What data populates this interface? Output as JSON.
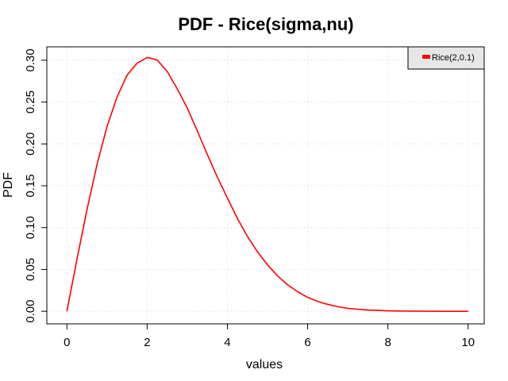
{
  "chart_data": {
    "type": "line",
    "title": "PDF - Rice(sigma,nu)",
    "xlabel": "values",
    "ylabel": "PDF",
    "xlim": [
      -0.5,
      10.4
    ],
    "ylim": [
      -0.015,
      0.316
    ],
    "x_ticks": [
      0,
      2,
      4,
      6,
      8,
      10
    ],
    "x_tick_labels": [
      "0",
      "2",
      "4",
      "6",
      "8",
      "10"
    ],
    "y_ticks": [
      0.0,
      0.05,
      0.1,
      0.15,
      0.2,
      0.25,
      0.3
    ],
    "y_tick_labels": [
      "0.00",
      "0.05",
      "0.10",
      "0.15",
      "0.20",
      "0.25",
      "0.30"
    ],
    "grid": true,
    "legend_position": "top-right",
    "series": [
      {
        "name": "Rice(2,0.1)",
        "color": "#ff0000",
        "x": [
          0,
          0.25,
          0.5,
          0.75,
          1,
          1.25,
          1.5,
          1.75,
          2,
          2.25,
          2.5,
          2.75,
          3,
          3.25,
          3.5,
          3.75,
          4,
          4.25,
          4.5,
          4.75,
          5,
          5.25,
          5.5,
          5.75,
          6,
          6.25,
          6.5,
          6.75,
          7,
          7.5,
          8,
          8.5,
          9,
          9.5,
          10
        ],
        "y": [
          0,
          0.0619,
          0.1213,
          0.1753,
          0.2208,
          0.256,
          0.2822,
          0.2965,
          0.3033,
          0.3003,
          0.2866,
          0.2659,
          0.2429,
          0.2155,
          0.1873,
          0.1603,
          0.1354,
          0.1109,
          0.0894,
          0.0711,
          0.0555,
          0.0423,
          0.0317,
          0.0234,
          0.0167,
          0.0118,
          0.0083,
          0.0055,
          0.0035,
          0.0015,
          0.0006,
          0.0002,
          0.0001,
          0.0,
          0.0
        ]
      }
    ]
  }
}
